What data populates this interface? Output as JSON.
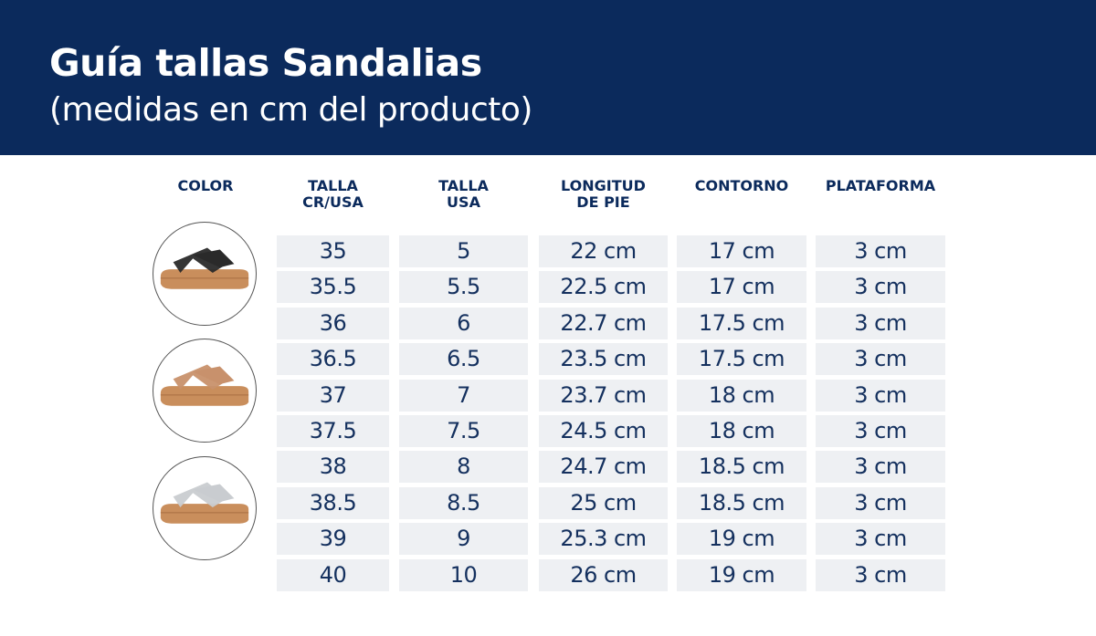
{
  "header": {
    "title": "Guía tallas Sandalias",
    "subtitle": "(medidas en cm del producto)"
  },
  "columns": [
    "COLOR",
    "TALLA\nCR/USA",
    "TALLA\nUSA",
    "LONGITUD\nDE PIE",
    "CONTORNO",
    "PLATAFORMA"
  ],
  "colors": [
    {
      "name": "black-sandal-icon",
      "strap": "#2a2a2a"
    },
    {
      "name": "rose-gold-sandal-icon",
      "strap": "#c8916c"
    },
    {
      "name": "silver-sandal-icon",
      "strap": "#c9ccd0"
    }
  ],
  "rows": [
    [
      "35",
      "5",
      "22 cm",
      "17 cm",
      "3 cm"
    ],
    [
      "35.5",
      "5.5",
      "22.5 cm",
      "17 cm",
      "3 cm"
    ],
    [
      "36",
      "6",
      "22.7 cm",
      "17.5 cm",
      "3 cm"
    ],
    [
      "36.5",
      "6.5",
      "23.5 cm",
      "17.5 cm",
      "3 cm"
    ],
    [
      "37",
      "7",
      "23.7 cm",
      "18 cm",
      "3 cm"
    ],
    [
      "37.5",
      "7.5",
      "24.5 cm",
      "18 cm",
      "3 cm"
    ],
    [
      "38",
      "8",
      "24.7 cm",
      "18.5 cm",
      "3 cm"
    ],
    [
      "38.5",
      "8.5",
      "25 cm",
      "18.5 cm",
      "3 cm"
    ],
    [
      "39",
      "9",
      "25.3 cm",
      "19 cm",
      "3 cm"
    ],
    [
      "40",
      "10",
      "26 cm",
      "19 cm",
      "3 cm"
    ]
  ]
}
